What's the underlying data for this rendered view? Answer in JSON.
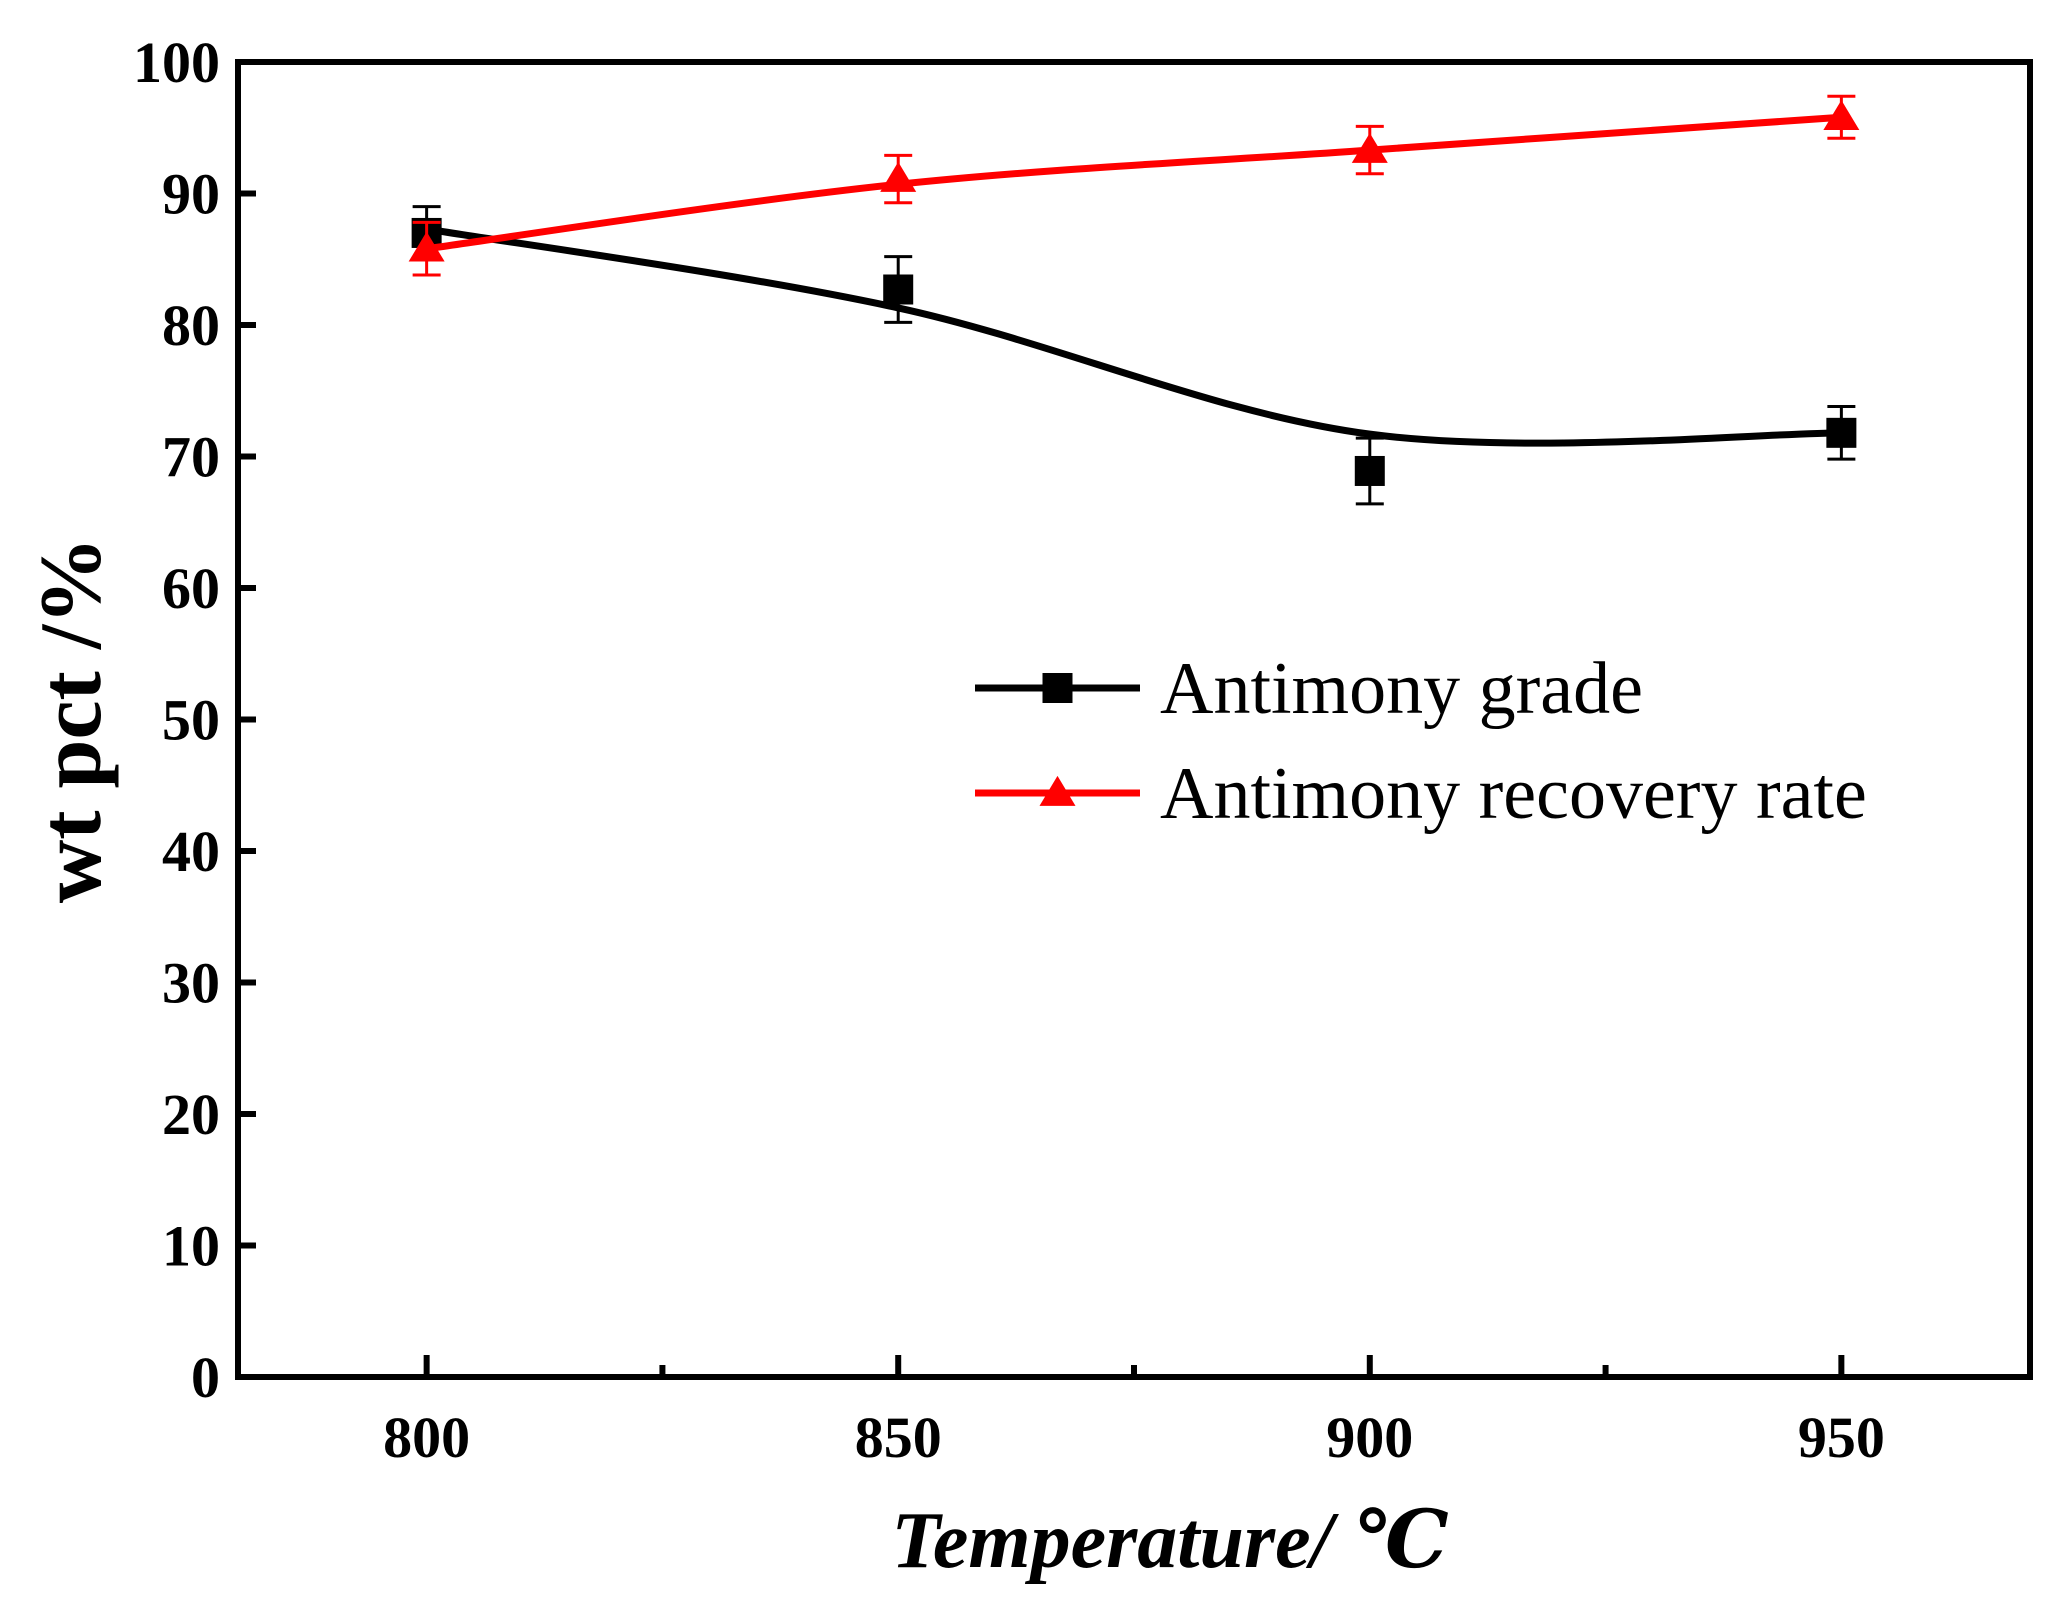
{
  "chart_data": {
    "type": "line",
    "xlabel": "Temperature/ ℃",
    "ylabel": "wt pct /%",
    "xlim": [
      780,
      970
    ],
    "ylim": [
      0,
      100
    ],
    "x_ticks": [
      800,
      850,
      900,
      950
    ],
    "x_minor_ticks": [
      825,
      875,
      925
    ],
    "y_ticks": [
      0,
      10,
      20,
      30,
      40,
      50,
      60,
      70,
      80,
      90,
      100
    ],
    "grid": false,
    "legend_position": "right-middle",
    "x": [
      800,
      850,
      900,
      950
    ],
    "series": [
      {
        "name": "Antimony grade",
        "values": [
          87.0,
          82.7,
          68.9,
          71.8
        ],
        "fit_values": [
          87.3,
          81.3,
          71.7,
          71.8
        ],
        "error": [
          2.0,
          2.5,
          2.5,
          2.0
        ],
        "marker": "square",
        "color": "#000000"
      },
      {
        "name": "Antimony recovery rate",
        "values": [
          85.8,
          91.1,
          93.3,
          95.8
        ],
        "fit_values": [
          85.8,
          90.7,
          93.3,
          95.8
        ],
        "error": [
          2.0,
          1.8,
          1.8,
          1.6
        ],
        "marker": "triangle",
        "color": "#ff0000"
      }
    ]
  }
}
